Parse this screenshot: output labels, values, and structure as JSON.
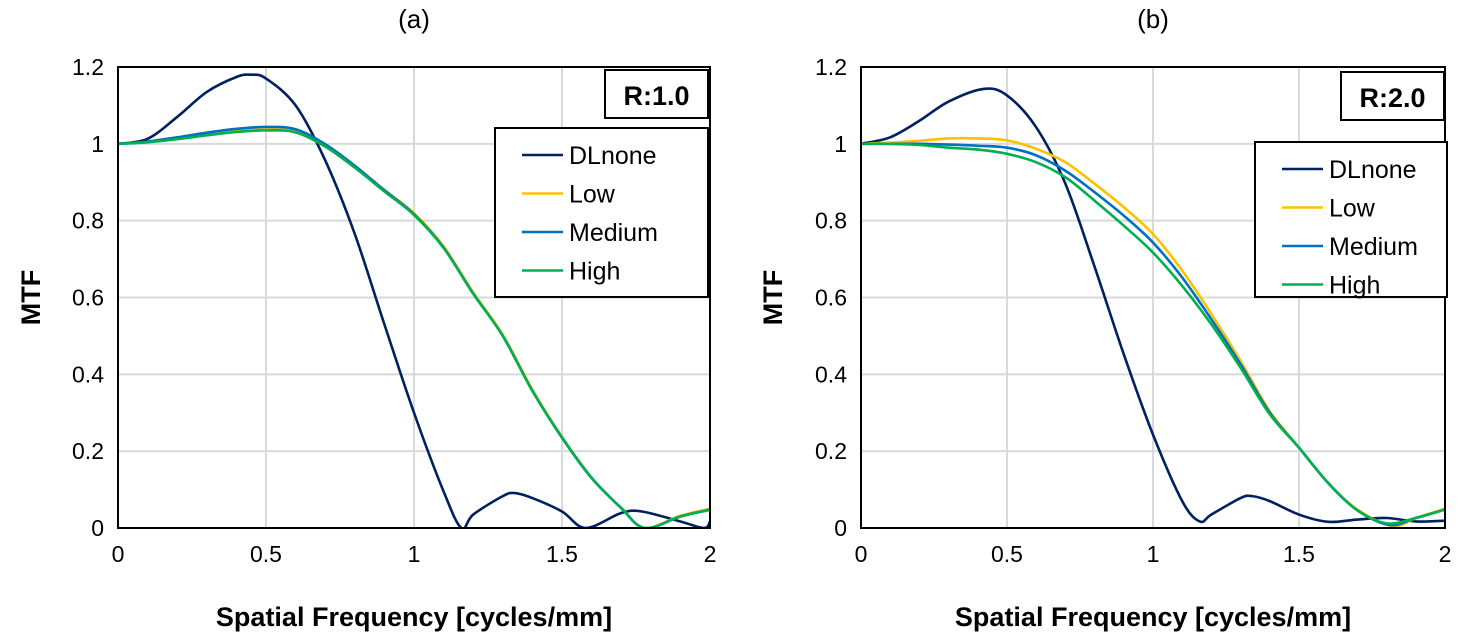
{
  "chart_data": [
    {
      "type": "line",
      "title": "(a)",
      "annotation": "R:1.0",
      "xlabel": "Spatial Frequency [cycles/mm]",
      "ylabel": "MTF",
      "xlim": [
        0,
        2
      ],
      "ylim": [
        0,
        1.2
      ],
      "xticks": [
        "0",
        "0.5",
        "1",
        "1.5",
        "2"
      ],
      "yticks": [
        "0",
        "0.2",
        "0.4",
        "0.6",
        "0.8",
        "1",
        "1.2"
      ],
      "grid": true,
      "legend_position": "top-right",
      "series": [
        {
          "name": "DLnone",
          "color": "#002060",
          "x": [
            0,
            0.1,
            0.2,
            0.3,
            0.4,
            0.45,
            0.5,
            0.6,
            0.7,
            0.8,
            0.9,
            1.0,
            1.1,
            1.16,
            1.2,
            1.3,
            1.34,
            1.4,
            1.5,
            1.58,
            1.7,
            1.77,
            1.9,
            1.98,
            2.0
          ],
          "y": [
            1,
            1.013,
            1.07,
            1.135,
            1.174,
            1.18,
            1.17,
            1.1,
            0.957,
            0.765,
            0.53,
            0.3,
            0.095,
            0,
            0.035,
            0.083,
            0.091,
            0.078,
            0.043,
            0,
            0.039,
            0.043,
            0.017,
            0,
            0.017
          ]
        },
        {
          "name": "Low",
          "color": "#FFC000",
          "x": [
            0,
            0.1,
            0.2,
            0.3,
            0.4,
            0.5,
            0.6,
            0.7,
            0.8,
            0.9,
            1.0,
            1.1,
            1.2,
            1.3,
            1.4,
            1.5,
            1.6,
            1.7,
            1.78,
            1.9,
            2.0
          ],
          "y": [
            1,
            1.005,
            1.015,
            1.026,
            1.036,
            1.04,
            1.035,
            0.997,
            0.942,
            0.88,
            0.819,
            0.733,
            0.613,
            0.503,
            0.36,
            0.237,
            0.131,
            0.052,
            0,
            0.032,
            0.05
          ]
        },
        {
          "name": "Medium",
          "color": "#0070C0",
          "x": [
            0,
            0.1,
            0.2,
            0.3,
            0.4,
            0.5,
            0.6,
            0.7,
            0.8,
            0.9,
            1.0,
            1.1,
            1.2,
            1.3,
            1.4,
            1.5,
            1.6,
            1.7,
            1.78,
            1.9,
            2.0
          ],
          "y": [
            1,
            1.006,
            1.017,
            1.029,
            1.039,
            1.044,
            1.038,
            0.999,
            0.943,
            0.879,
            0.817,
            0.73,
            0.61,
            0.5,
            0.357,
            0.235,
            0.13,
            0.052,
            0,
            0.03,
            0.048
          ]
        },
        {
          "name": "High",
          "color": "#00B050",
          "x": [
            0,
            0.1,
            0.2,
            0.3,
            0.4,
            0.5,
            0.6,
            0.7,
            0.8,
            0.9,
            1.0,
            1.1,
            1.2,
            1.3,
            1.4,
            1.5,
            1.6,
            1.7,
            1.78,
            1.9,
            2.0
          ],
          "y": [
            1,
            1.004,
            1.012,
            1.022,
            1.031,
            1.035,
            1.03,
            0.993,
            0.938,
            0.876,
            0.815,
            0.729,
            0.61,
            0.5,
            0.357,
            0.236,
            0.131,
            0.052,
            0,
            0.03,
            0.047
          ]
        }
      ]
    },
    {
      "type": "line",
      "title": "(b)",
      "annotation": "R:2.0",
      "xlabel": "Spatial Frequency [cycles/mm]",
      "ylabel": "MTF",
      "xlim": [
        0,
        2
      ],
      "ylim": [
        0,
        1.2
      ],
      "xticks": [
        "0",
        "0.5",
        "1",
        "1.5",
        "2"
      ],
      "yticks": [
        "0",
        "0.2",
        "0.4",
        "0.6",
        "0.8",
        "1",
        "1.2"
      ],
      "grid": true,
      "legend_position": "top-right",
      "series": [
        {
          "name": "DLnone",
          "color": "#002060",
          "x": [
            0,
            0.1,
            0.2,
            0.3,
            0.42,
            0.5,
            0.6,
            0.7,
            0.8,
            0.9,
            1.0,
            1.1,
            1.16,
            1.2,
            1.3,
            1.34,
            1.4,
            1.5,
            1.6,
            1.7,
            1.8,
            1.9,
            2.0
          ],
          "y": [
            1,
            1.017,
            1.06,
            1.11,
            1.143,
            1.126,
            1.043,
            0.896,
            0.68,
            0.452,
            0.243,
            0.07,
            0.017,
            0.035,
            0.078,
            0.083,
            0.07,
            0.035,
            0.016,
            0.022,
            0.026,
            0.017,
            0.019
          ]
        },
        {
          "name": "Low",
          "color": "#FFC000",
          "x": [
            0,
            0.1,
            0.2,
            0.3,
            0.4,
            0.5,
            0.6,
            0.7,
            0.8,
            0.9,
            1.0,
            1.1,
            1.2,
            1.3,
            1.4,
            1.5,
            1.6,
            1.7,
            1.82,
            1.9,
            2.0
          ],
          "y": [
            1,
            1.003,
            1.008,
            1.014,
            1.014,
            1.009,
            0.987,
            0.952,
            0.896,
            0.835,
            0.765,
            0.67,
            0.557,
            0.435,
            0.304,
            0.209,
            0.117,
            0.048,
            0.005,
            0.026,
            0.05
          ]
        },
        {
          "name": "Medium",
          "color": "#0070C0",
          "x": [
            0,
            0.1,
            0.2,
            0.3,
            0.4,
            0.5,
            0.6,
            0.7,
            0.8,
            0.9,
            1.0,
            1.1,
            1.2,
            1.3,
            1.4,
            1.5,
            1.6,
            1.7,
            1.81,
            1.9,
            2.0
          ],
          "y": [
            1,
            1.0,
            1.0,
            0.998,
            0.995,
            0.99,
            0.97,
            0.93,
            0.874,
            0.813,
            0.743,
            0.652,
            0.543,
            0.426,
            0.3,
            0.209,
            0.117,
            0.046,
            0.008,
            0.026,
            0.048
          ]
        },
        {
          "name": "High",
          "color": "#00B050",
          "x": [
            0,
            0.1,
            0.2,
            0.3,
            0.4,
            0.5,
            0.6,
            0.7,
            0.8,
            0.9,
            1.0,
            1.1,
            1.2,
            1.3,
            1.4,
            1.5,
            1.6,
            1.7,
            1.8,
            1.9,
            2.0
          ],
          "y": [
            1,
            1.0,
            0.997,
            0.99,
            0.985,
            0.974,
            0.952,
            0.913,
            0.852,
            0.787,
            0.717,
            0.63,
            0.53,
            0.417,
            0.296,
            0.209,
            0.117,
            0.046,
            0.012,
            0.026,
            0.048
          ]
        }
      ]
    }
  ]
}
